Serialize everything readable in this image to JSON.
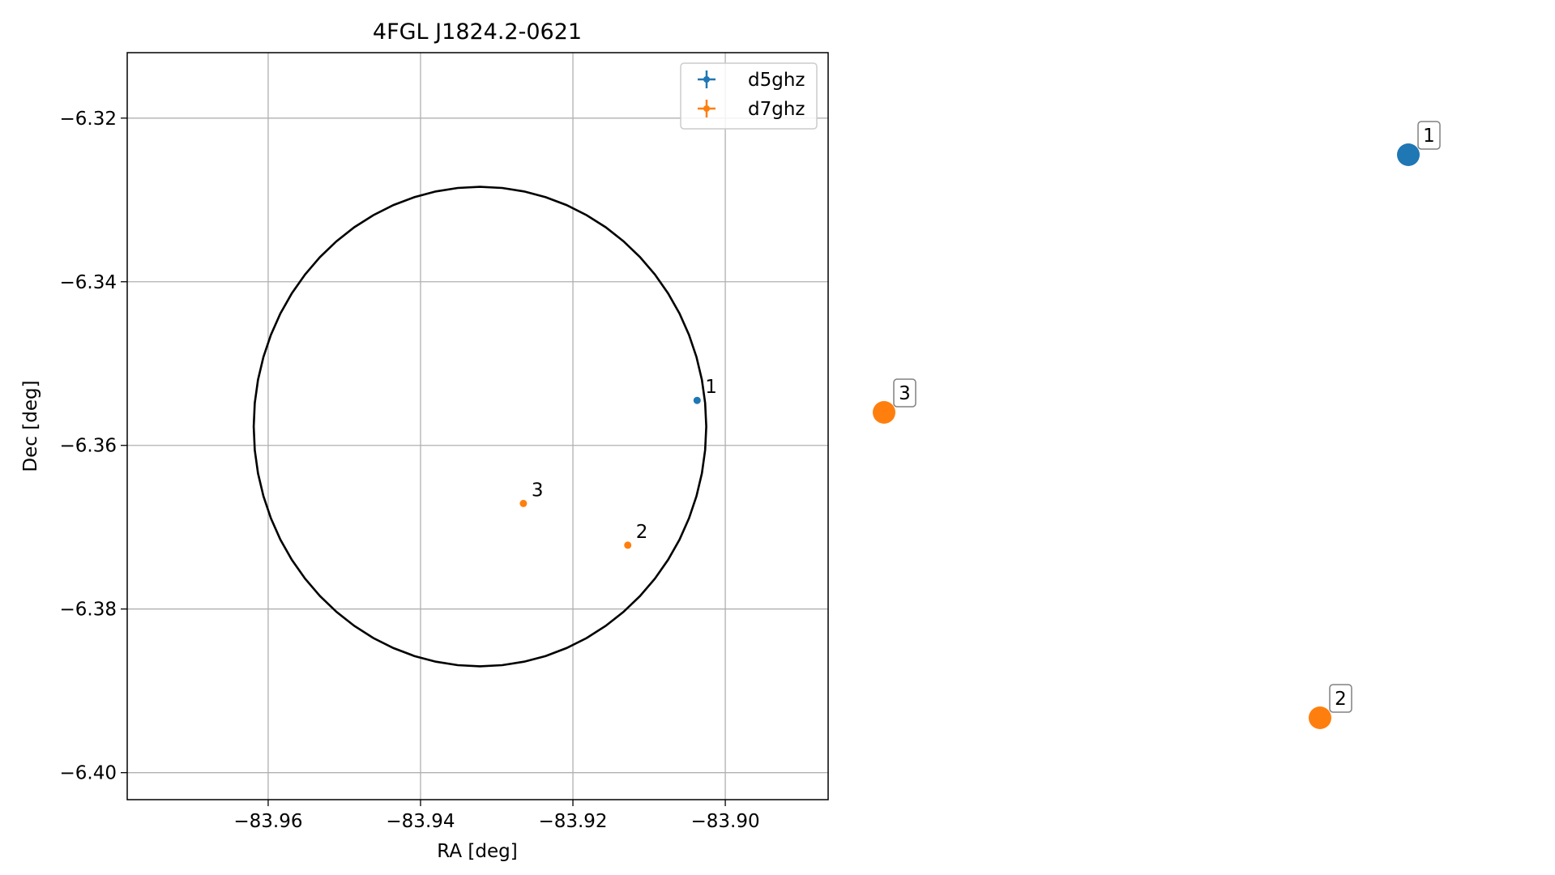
{
  "chart_data": {
    "type": "scatter",
    "title": "4FGL J1824.2-0621",
    "xlabel": "RA [deg]",
    "ylabel": "Dec [deg]",
    "xlim": [
      -83.9785,
      -83.8865
    ],
    "ylim": [
      -6.4033,
      -6.312
    ],
    "grid": true,
    "legend_position": "top-right",
    "x_ticks": [
      {
        "value": -83.96,
        "label": "−83.96"
      },
      {
        "value": -83.94,
        "label": "−83.94"
      },
      {
        "value": -83.92,
        "label": "−83.92"
      },
      {
        "value": -83.9,
        "label": "−83.90"
      }
    ],
    "y_ticks": [
      {
        "value": -6.32,
        "label": "−6.32"
      },
      {
        "value": -6.34,
        "label": "−6.34"
      },
      {
        "value": -6.36,
        "label": "−6.36"
      },
      {
        "value": -6.38,
        "label": "−6.38"
      },
      {
        "value": -6.4,
        "label": "−6.40"
      }
    ],
    "series": [
      {
        "name": "d5ghz",
        "color": "#1f77b4",
        "points": [
          {
            "label": "1",
            "x": -83.9037,
            "y": -6.3545
          }
        ]
      },
      {
        "name": "d7ghz",
        "color": "#ff7f0e",
        "points": [
          {
            "label": "2",
            "x": -83.9128,
            "y": -6.3722
          },
          {
            "label": "3",
            "x": -83.9265,
            "y": -6.3671
          }
        ]
      }
    ],
    "ellipse": {
      "center_x": -83.9322,
      "center_y": -6.3577,
      "radius_x": 0.0297,
      "radius_y": 0.0293,
      "color": "#000000"
    },
    "side_markers": [
      {
        "label": "1",
        "color": "#1f77b4"
      },
      {
        "label": "3",
        "color": "#ff7f0e"
      },
      {
        "label": "2",
        "color": "#ff7f0e"
      }
    ]
  }
}
